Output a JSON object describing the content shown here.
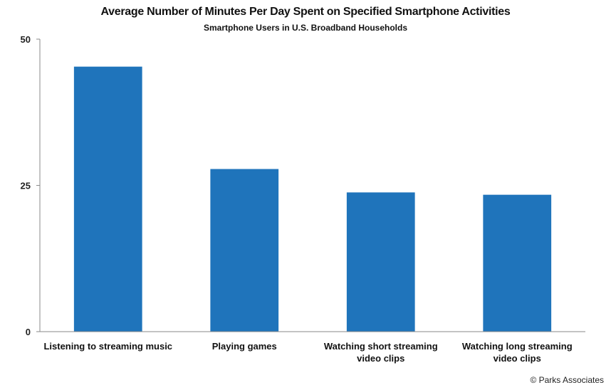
{
  "chart_data": {
    "type": "bar",
    "title": "Average Number of Minutes Per Day Spent on Specified Smartphone Activities",
    "subtitle": "Smartphone Users in U.S. Broadband Households",
    "categories": [
      [
        "Listening to streaming music"
      ],
      [
        "Playing games"
      ],
      [
        "Watching short streaming",
        "video clips"
      ],
      [
        "Watching long streaming",
        "video clips"
      ]
    ],
    "values": [
      45.3,
      27.8,
      23.8,
      23.4
    ],
    "ylim": [
      0,
      50
    ],
    "yticks": [
      0,
      25,
      50
    ],
    "xlabel": "",
    "ylabel": "",
    "grid": false,
    "bar_color": "#1f74bb"
  },
  "footer": {
    "copyright": "© Parks Associates"
  }
}
